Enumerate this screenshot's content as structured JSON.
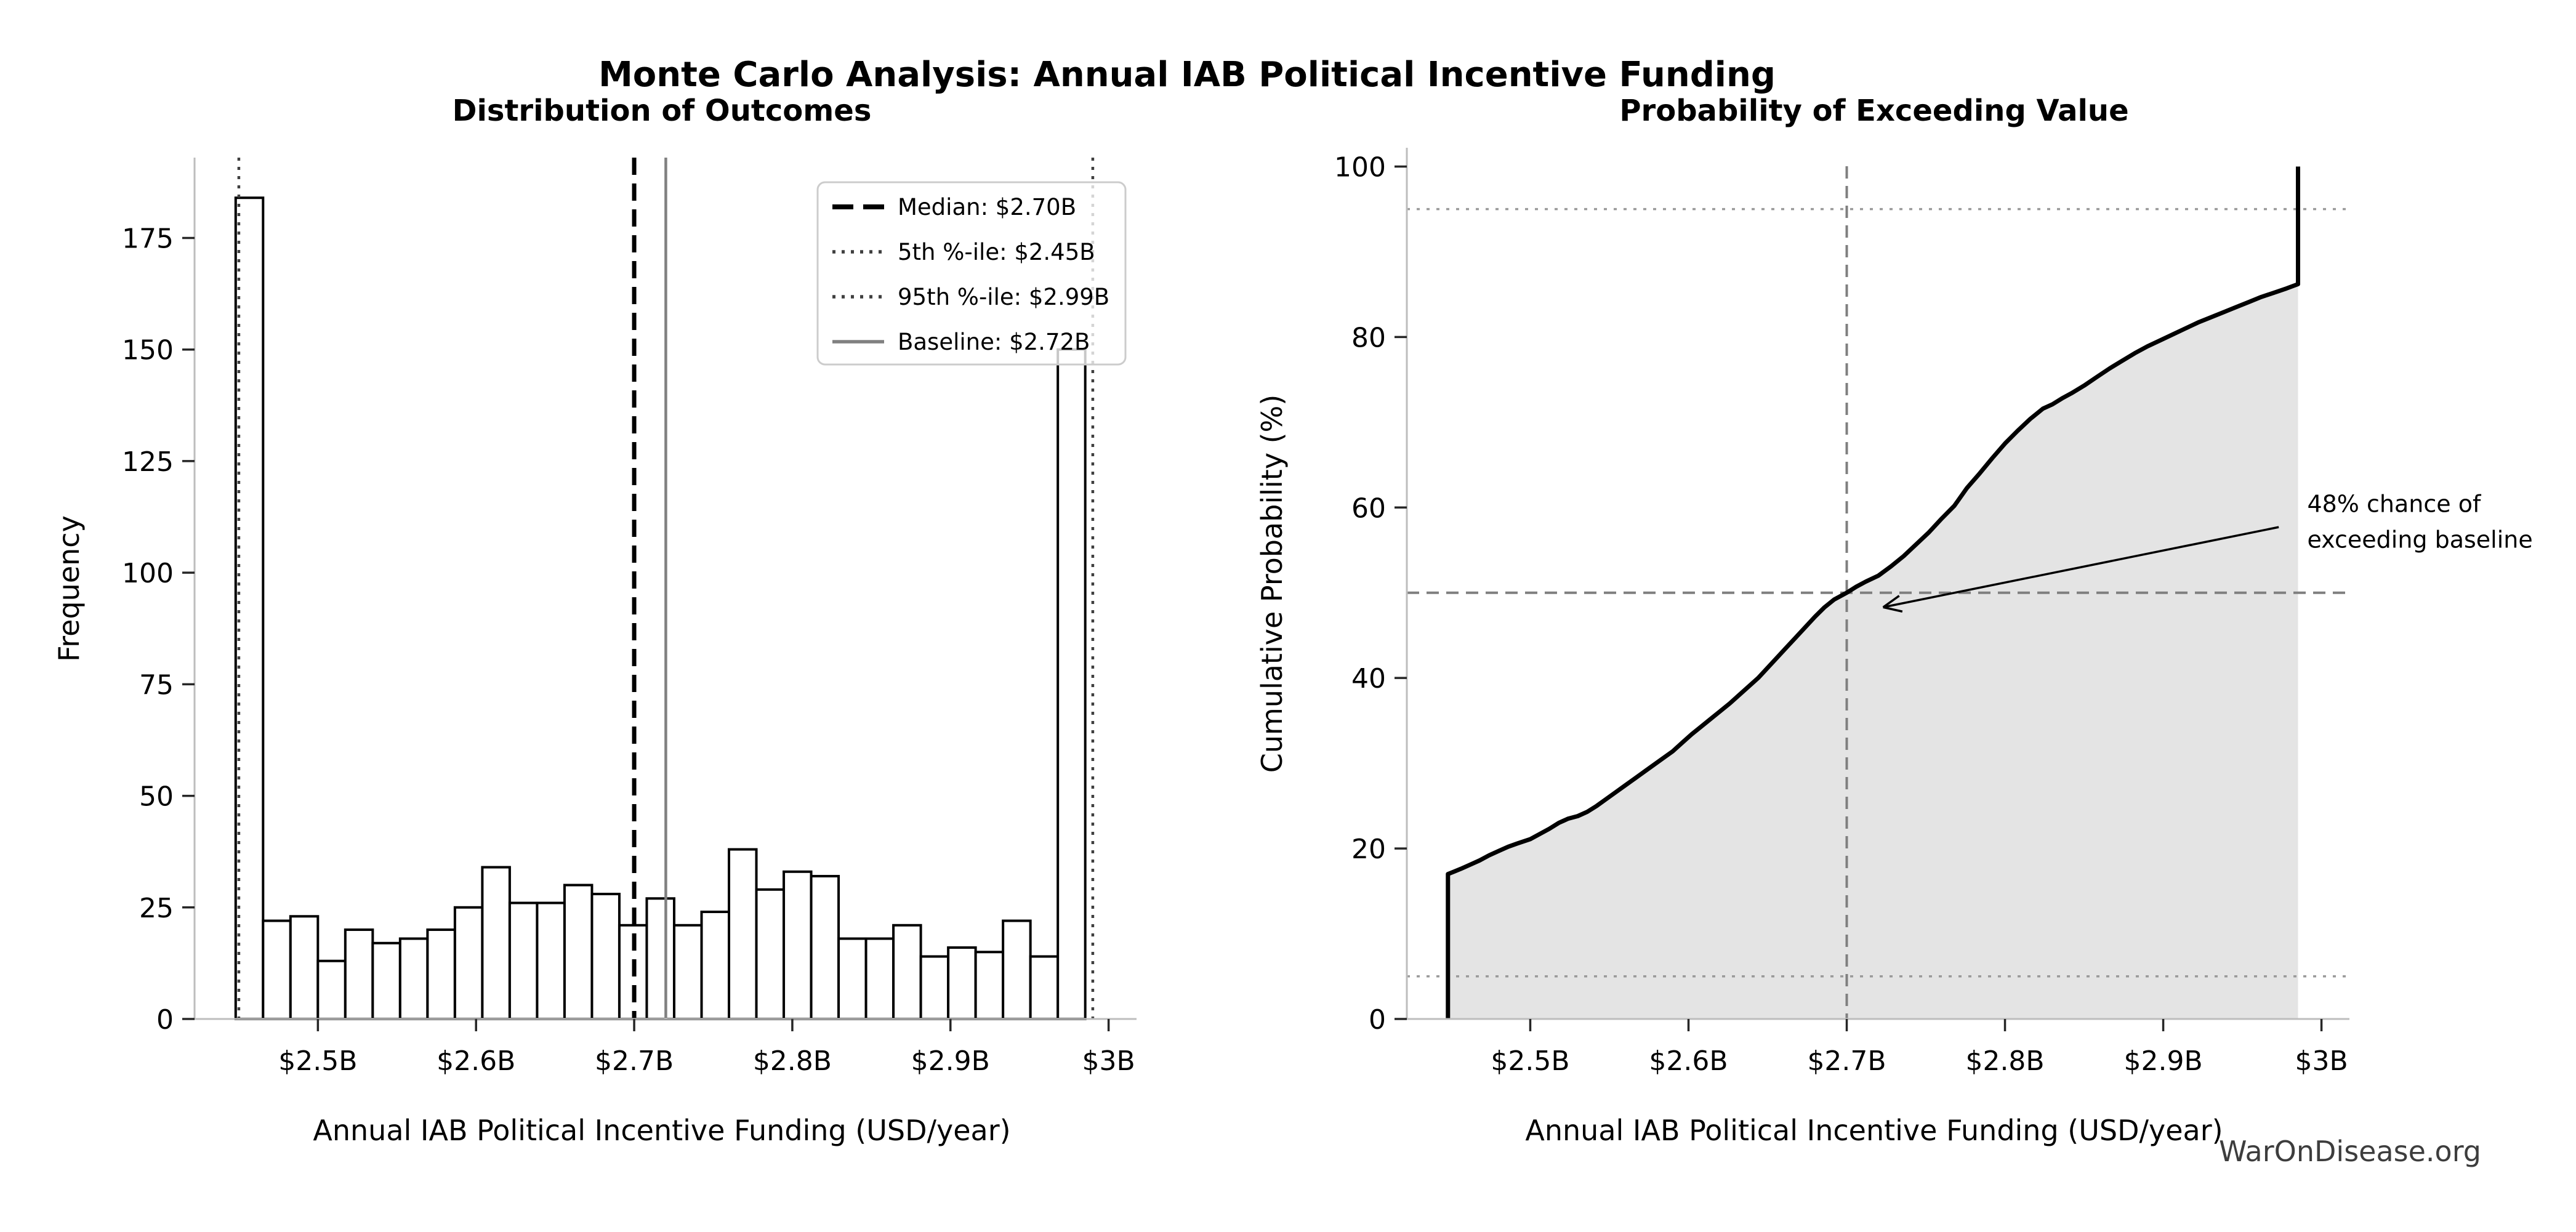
{
  "page": {
    "main_title": "Monte Carlo Analysis: Annual IAB Political Incentive Funding",
    "watermark": "WarOnDisease.org",
    "background_color": "#ffffff",
    "accent_colors": {
      "median_line": "#000000",
      "percentile_lines": "#3f3f3f",
      "baseline_line": "#808080",
      "cdf_line": "#000000",
      "cdf_fill": "#e4e4e4",
      "crosshair": "#7f7f7f",
      "guide_dotted": "#9a9a9a",
      "spine": "#bdbdbd",
      "tick": "#262626"
    }
  },
  "chart_data": [
    {
      "type": "bar",
      "title": "Distribution of Outcomes",
      "xlabel": "Annual IAB Political Incentive Funding (USD/year)",
      "ylabel": "Frequency",
      "xlim": [
        2.422,
        3.013
      ],
      "ylim": [
        0,
        193
      ],
      "grid": false,
      "legend_position": "upper right",
      "xticks": [
        {
          "value": 2.5,
          "label": "$2.5B"
        },
        {
          "value": 2.6,
          "label": "$2.6B"
        },
        {
          "value": 2.7,
          "label": "$2.7B"
        },
        {
          "value": 2.8,
          "label": "$2.8B"
        },
        {
          "value": 2.9,
          "label": "$2.9B"
        },
        {
          "value": 3.0,
          "label": "$3B"
        }
      ],
      "yticks": [
        0,
        25,
        50,
        75,
        100,
        125,
        150,
        175
      ],
      "histogram": {
        "bin_start": 2.448,
        "bin_width": 0.01733,
        "counts": [
          184,
          22,
          23,
          13,
          20,
          17,
          18,
          20,
          25,
          34,
          26,
          26,
          30,
          28,
          21,
          27,
          21,
          24,
          38,
          29,
          33,
          32,
          18,
          18,
          21,
          14,
          16,
          15,
          22,
          14,
          150
        ],
        "bar_fill": "#ffffff",
        "bar_edge": "#000000"
      },
      "ref_lines": [
        {
          "label": "Median: $2.70B",
          "value": 2.7,
          "style": "dashed",
          "color": "#000000",
          "width": 7
        },
        {
          "label": "5th %-ile: $2.45B",
          "value": 2.45,
          "style": "dotted",
          "color": "#3f3f3f",
          "width": 4.5
        },
        {
          "label": "95th %-ile: $2.99B",
          "value": 2.99,
          "style": "dotted",
          "color": "#3f3f3f",
          "width": 4.5
        },
        {
          "label": "Baseline: $2.72B",
          "value": 2.72,
          "style": "solid",
          "color": "#808080",
          "width": 4.5
        }
      ]
    },
    {
      "type": "line",
      "title": "Probability of Exceeding Value",
      "xlabel": "Annual IAB Political Incentive Funding (USD/year)",
      "ylabel": "Cumulative Probability (%)",
      "xlim": [
        2.422,
        3.013
      ],
      "ylim": [
        0,
        102.2
      ],
      "grid": false,
      "line_color": "#000000",
      "line_width": 7,
      "fill_color": "#e4e4e4",
      "xticks": [
        {
          "value": 2.5,
          "label": "$2.5B"
        },
        {
          "value": 2.6,
          "label": "$2.6B"
        },
        {
          "value": 2.7,
          "label": "$2.7B"
        },
        {
          "value": 2.8,
          "label": "$2.8B"
        },
        {
          "value": 2.9,
          "label": "$2.9B"
        },
        {
          "value": 3.0,
          "label": "$3B"
        }
      ],
      "yticks": [
        0,
        20,
        40,
        60,
        80,
        100
      ],
      "points": [
        [
          2.448,
          0
        ],
        [
          2.448,
          17
        ],
        [
          2.452,
          17.3
        ],
        [
          2.456,
          17.6
        ],
        [
          2.462,
          18.1
        ],
        [
          2.468,
          18.6
        ],
        [
          2.474,
          19.2
        ],
        [
          2.48,
          19.7
        ],
        [
          2.486,
          20.2
        ],
        [
          2.492,
          20.6
        ],
        [
          2.5,
          21.1
        ],
        [
          2.506,
          21.7
        ],
        [
          2.512,
          22.3
        ],
        [
          2.518,
          23
        ],
        [
          2.524,
          23.5
        ],
        [
          2.53,
          23.8
        ],
        [
          2.536,
          24.3
        ],
        [
          2.542,
          25
        ],
        [
          2.548,
          25.8
        ],
        [
          2.554,
          26.6
        ],
        [
          2.56,
          27.4
        ],
        [
          2.566,
          28.2
        ],
        [
          2.572,
          29
        ],
        [
          2.578,
          29.8
        ],
        [
          2.584,
          30.6
        ],
        [
          2.59,
          31.4
        ],
        [
          2.596,
          32.4
        ],
        [
          2.602,
          33.4
        ],
        [
          2.608,
          34.3
        ],
        [
          2.614,
          35.2
        ],
        [
          2.62,
          36.1
        ],
        [
          2.626,
          37
        ],
        [
          2.632,
          38
        ],
        [
          2.638,
          39
        ],
        [
          2.644,
          40
        ],
        [
          2.65,
          41.2
        ],
        [
          2.656,
          42.4
        ],
        [
          2.662,
          43.6
        ],
        [
          2.668,
          44.8
        ],
        [
          2.674,
          46
        ],
        [
          2.68,
          47.2
        ],
        [
          2.686,
          48.3
        ],
        [
          2.692,
          49.2
        ],
        [
          2.7,
          50
        ],
        [
          2.706,
          50.7
        ],
        [
          2.712,
          51.3
        ],
        [
          2.72,
          52
        ],
        [
          2.728,
          53.1
        ],
        [
          2.736,
          54.3
        ],
        [
          2.744,
          55.7
        ],
        [
          2.752,
          57.1
        ],
        [
          2.76,
          58.7
        ],
        [
          2.768,
          60.2
        ],
        [
          2.776,
          62.3
        ],
        [
          2.784,
          64
        ],
        [
          2.792,
          65.8
        ],
        [
          2.8,
          67.5
        ],
        [
          2.808,
          69
        ],
        [
          2.816,
          70.4
        ],
        [
          2.824,
          71.6
        ],
        [
          2.83,
          72.1
        ],
        [
          2.836,
          72.8
        ],
        [
          2.842,
          73.4
        ],
        [
          2.85,
          74.3
        ],
        [
          2.858,
          75.3
        ],
        [
          2.866,
          76.3
        ],
        [
          2.874,
          77.2
        ],
        [
          2.882,
          78.1
        ],
        [
          2.89,
          78.9
        ],
        [
          2.898,
          79.6
        ],
        [
          2.906,
          80.3
        ],
        [
          2.914,
          81
        ],
        [
          2.922,
          81.7
        ],
        [
          2.93,
          82.3
        ],
        [
          2.938,
          82.9
        ],
        [
          2.946,
          83.5
        ],
        [
          2.954,
          84.1
        ],
        [
          2.962,
          84.7
        ],
        [
          2.97,
          85.2
        ],
        [
          2.978,
          85.7
        ],
        [
          2.9852,
          86.2
        ],
        [
          2.9852,
          100
        ]
      ],
      "guides": [
        {
          "axis": "y",
          "value": 95,
          "style": "dotted",
          "color": "#9a9a9a",
          "width": 3.5
        },
        {
          "axis": "y",
          "value": 5,
          "style": "dotted",
          "color": "#9a9a9a",
          "width": 3.5
        },
        {
          "axis": "y",
          "value": 50,
          "style": "dashed",
          "color": "#7f7f7f",
          "width": 4
        },
        {
          "axis": "x",
          "value": 2.7,
          "style": "dashed",
          "color": "#7f7f7f",
          "width": 4
        }
      ],
      "annotation": {
        "lines": [
          "48% chance of",
          "exceeding baseline"
        ],
        "text_x": 2.991,
        "text_y": 60.5,
        "line_step": 4.2,
        "arrow_from": [
          2.973,
          57.7
        ],
        "arrow_to": [
          2.723,
          48.3
        ],
        "color": "#000000"
      }
    }
  ]
}
